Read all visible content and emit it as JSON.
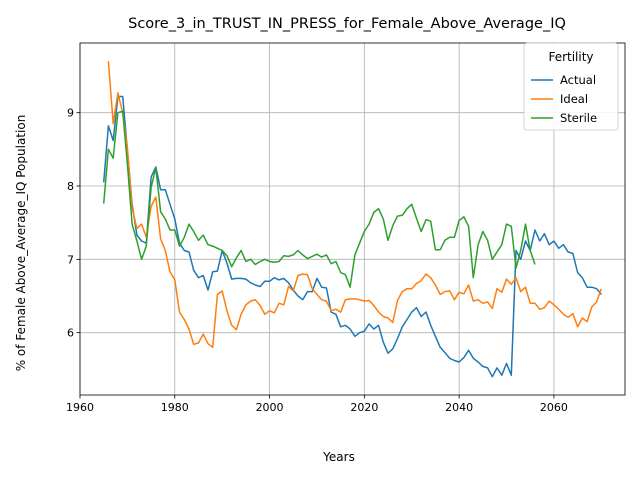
{
  "chart_data": {
    "type": "line",
    "title": "Score_3_in_TRUST_IN_PRESS_for_Female_Above_Average_IQ",
    "xlabel": "Years",
    "ylabel": "% of Female Above_Average_IQ Population",
    "xlim": [
      1960,
      2075
    ],
    "ylim": [
      5.15,
      9.95
    ],
    "xticks": [
      1960,
      1980,
      2000,
      2020,
      2040,
      2060
    ],
    "yticks": [
      6,
      7,
      8,
      9
    ],
    "grid": true,
    "legend": {
      "title": "Fertility",
      "placement": "top-right"
    },
    "series": [
      {
        "name": "Actual",
        "color": "#1f77b4",
        "x": [
          1965,
          1966,
          1967,
          1968,
          1969,
          1970,
          1971,
          1972,
          1973,
          1974,
          1975,
          1976,
          1977,
          1978,
          1979,
          1980,
          1981,
          1982,
          1983,
          1984,
          1985,
          1986,
          1987,
          1988,
          1989,
          1990,
          1991,
          1992,
          1993,
          1994,
          1995,
          1996,
          1997,
          1998,
          1999,
          2000,
          2001,
          2002,
          2003,
          2004,
          2005,
          2006,
          2007,
          2008,
          2009,
          2010,
          2011,
          2012,
          2013,
          2014,
          2015,
          2016,
          2017,
          2018,
          2019,
          2020,
          2021,
          2022,
          2023,
          2024,
          2025,
          2026,
          2027,
          2028,
          2029,
          2030,
          2031,
          2032,
          2033,
          2034,
          2035,
          2036,
          2037,
          2038,
          2039,
          2040,
          2041,
          2042,
          2043,
          2044,
          2045,
          2046,
          2047,
          2048,
          2049,
          2050,
          2051,
          2052,
          2053,
          2054,
          2055,
          2056,
          2057,
          2058,
          2059,
          2060,
          2061,
          2062,
          2063,
          2064,
          2065,
          2066,
          2067,
          2068,
          2069,
          2070
        ],
        "y": [
          8.05,
          8.82,
          8.62,
          9.22,
          9.22,
          8.49,
          7.75,
          7.33,
          7.25,
          7.22,
          8.12,
          8.26,
          7.95,
          7.95,
          7.75,
          7.55,
          7.22,
          7.12,
          7.1,
          6.85,
          6.75,
          6.78,
          6.58,
          6.83,
          6.84,
          7.12,
          6.95,
          6.73,
          6.74,
          6.74,
          6.73,
          6.68,
          6.65,
          6.63,
          6.7,
          6.7,
          6.75,
          6.72,
          6.74,
          6.68,
          6.58,
          6.5,
          6.45,
          6.56,
          6.56,
          6.74,
          6.62,
          6.61,
          6.28,
          6.25,
          6.08,
          6.1,
          6.05,
          5.95,
          6.0,
          6.02,
          6.12,
          6.05,
          6.1,
          5.87,
          5.72,
          5.78,
          5.92,
          6.08,
          6.18,
          6.28,
          6.34,
          6.22,
          6.28,
          6.1,
          5.95,
          5.8,
          5.73,
          5.65,
          5.62,
          5.6,
          5.66,
          5.76,
          5.65,
          5.6,
          5.54,
          5.52,
          5.4,
          5.52,
          5.42,
          5.58,
          5.42,
          7.12,
          7.0,
          7.25,
          7.12,
          7.4,
          7.25,
          7.35,
          7.2,
          7.25,
          7.15,
          7.2,
          7.1,
          7.08,
          6.82,
          6.75,
          6.62,
          6.62,
          6.6,
          6.52
        ]
      },
      {
        "name": "Ideal",
        "color": "#ff7f0e",
        "x": [
          1966,
          1967,
          1968,
          1969,
          1970,
          1971,
          1972,
          1973,
          1974,
          1975,
          1976,
          1977,
          1978,
          1979,
          1980,
          1981,
          1982,
          1983,
          1984,
          1985,
          1986,
          1987,
          1988,
          1989,
          1990,
          1991,
          1992,
          1993,
          1994,
          1995,
          1996,
          1997,
          1998,
          1999,
          2000,
          2001,
          2002,
          2003,
          2004,
          2005,
          2006,
          2007,
          2008,
          2009,
          2010,
          2011,
          2012,
          2013,
          2014,
          2015,
          2016,
          2017,
          2018,
          2019,
          2020,
          2021,
          2022,
          2023,
          2024,
          2025,
          2026,
          2027,
          2028,
          2029,
          2030,
          2031,
          2032,
          2033,
          2034,
          2035,
          2036,
          2037,
          2038,
          2039,
          2040,
          2041,
          2042,
          2043,
          2044,
          2045,
          2046,
          2047,
          2048,
          2049,
          2050,
          2051,
          2052,
          2053,
          2054,
          2055,
          2056,
          2057,
          2058,
          2059,
          2060,
          2061,
          2062,
          2063,
          2064,
          2065,
          2066,
          2067,
          2068,
          2069,
          2070
        ],
        "y": [
          9.7,
          8.85,
          9.27,
          9.0,
          8.52,
          7.7,
          7.42,
          7.48,
          7.3,
          7.72,
          7.85,
          7.28,
          7.12,
          6.83,
          6.72,
          6.28,
          6.18,
          6.05,
          5.84,
          5.86,
          5.98,
          5.85,
          5.8,
          6.52,
          6.57,
          6.3,
          6.1,
          6.04,
          6.25,
          6.38,
          6.43,
          6.45,
          6.37,
          6.25,
          6.3,
          6.27,
          6.4,
          6.38,
          6.63,
          6.57,
          6.78,
          6.8,
          6.79,
          6.6,
          6.52,
          6.45,
          6.43,
          6.3,
          6.32,
          6.28,
          6.45,
          6.46,
          6.46,
          6.45,
          6.43,
          6.44,
          6.37,
          6.28,
          6.22,
          6.2,
          6.14,
          6.44,
          6.56,
          6.6,
          6.6,
          6.67,
          6.71,
          6.8,
          6.75,
          6.65,
          6.52,
          6.56,
          6.57,
          6.45,
          6.55,
          6.53,
          6.65,
          6.43,
          6.45,
          6.4,
          6.42,
          6.33,
          6.6,
          6.55,
          6.73,
          6.66,
          6.75,
          6.56,
          6.62,
          6.4,
          6.4,
          6.32,
          6.34,
          6.43,
          6.38,
          6.32,
          6.25,
          6.21,
          6.26,
          6.08,
          6.2,
          6.15,
          6.35,
          6.42,
          6.6
        ]
      },
      {
        "name": "Sterile",
        "color": "#2ca02c",
        "x": [
          1965,
          1966,
          1967,
          1968,
          1969,
          1970,
          1971,
          1972,
          1973,
          1974,
          1975,
          1976,
          1977,
          1978,
          1979,
          1980,
          1981,
          1982,
          1983,
          1984,
          1985,
          1986,
          1987,
          1988,
          1989,
          1990,
          1991,
          1992,
          1993,
          1994,
          1995,
          1996,
          1997,
          1998,
          1999,
          2000,
          2001,
          2002,
          2003,
          2004,
          2005,
          2006,
          2007,
          2008,
          2009,
          2010,
          2011,
          2012,
          2013,
          2014,
          2015,
          2016,
          2017,
          2018,
          2019,
          2020,
          2021,
          2022,
          2023,
          2024,
          2025,
          2026,
          2027,
          2028,
          2029,
          2030,
          2031,
          2032,
          2033,
          2034,
          2035,
          2036,
          2037,
          2038,
          2039,
          2040,
          2041,
          2042,
          2043,
          2044,
          2045,
          2046,
          2047,
          2048,
          2049,
          2050,
          2051,
          2052,
          2053,
          2054,
          2055,
          2056
        ],
        "y": [
          7.76,
          8.5,
          8.38,
          9.0,
          9.02,
          8.3,
          7.48,
          7.25,
          7.0,
          7.18,
          7.98,
          8.25,
          7.65,
          7.55,
          7.4,
          7.4,
          7.18,
          7.3,
          7.48,
          7.38,
          7.26,
          7.33,
          7.2,
          7.18,
          7.15,
          7.12,
          7.05,
          6.9,
          7.02,
          7.12,
          6.97,
          7.0,
          6.93,
          6.97,
          7.0,
          6.97,
          6.96,
          6.97,
          7.05,
          7.04,
          7.06,
          7.12,
          7.06,
          7.01,
          7.04,
          7.07,
          7.03,
          7.06,
          6.94,
          6.97,
          6.82,
          6.79,
          6.62,
          7.06,
          7.22,
          7.38,
          7.48,
          7.64,
          7.69,
          7.55,
          7.26,
          7.46,
          7.59,
          7.6,
          7.69,
          7.75,
          7.56,
          7.38,
          7.54,
          7.52,
          7.13,
          7.13,
          7.26,
          7.3,
          7.3,
          7.53,
          7.58,
          7.45,
          6.75,
          7.2,
          7.38,
          7.26,
          7.0,
          7.1,
          7.2,
          7.48,
          7.45,
          6.88,
          7.12,
          7.48,
          7.12,
          6.93
        ]
      }
    ]
  }
}
